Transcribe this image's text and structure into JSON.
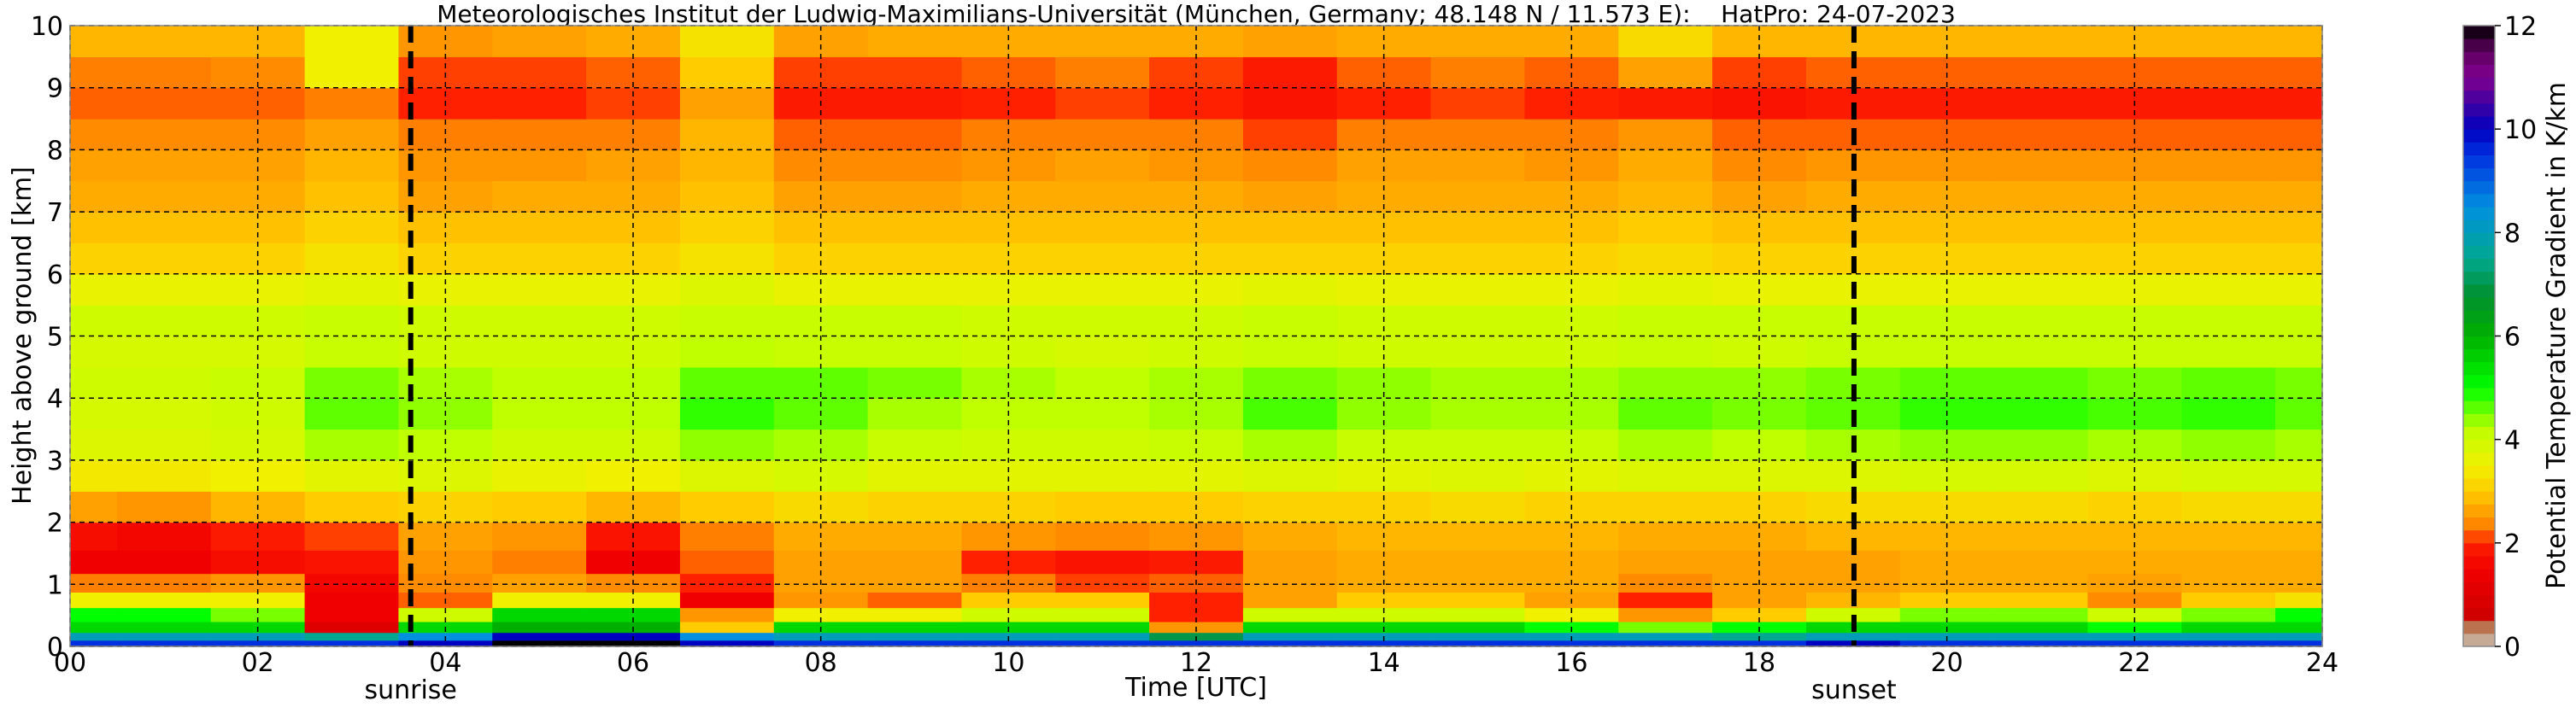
{
  "chart_data": {
    "type": "heatmap",
    "title": "Meteorologisches Institut der Ludwig-Maximilians-Universität (München, Germany; 48.148 N / 11.573 E):    HatPro: 24-07-2023",
    "xlabel": "Time [UTC]",
    "ylabel": "Height above ground [km]",
    "xlim": [
      0,
      24
    ],
    "ylim": [
      0,
      10
    ],
    "x_ticks": [
      "00",
      "02",
      "04",
      "06",
      "08",
      "10",
      "12",
      "14",
      "16",
      "18",
      "20",
      "22",
      "24"
    ],
    "y_ticks": [
      "0",
      "1",
      "2",
      "3",
      "4",
      "5",
      "6",
      "7",
      "8",
      "9",
      "10"
    ],
    "grid": true,
    "colorbar": {
      "label": "Potential Temperature Gradient in K/km",
      "range": [
        0,
        12
      ],
      "ticks": [
        "0",
        "2",
        "4",
        "6",
        "8",
        "10",
        "12"
      ],
      "stops": [
        [
          0,
          "#d2bcbc"
        ],
        [
          0.3,
          "#b89060"
        ],
        [
          0.5,
          "#c04030"
        ],
        [
          0.6,
          "#d00000"
        ],
        [
          1.5,
          "#f00000"
        ],
        [
          2.0,
          "#ff2000"
        ],
        [
          2.3,
          "#ff8000"
        ],
        [
          3.0,
          "#ffcc00"
        ],
        [
          3.5,
          "#f0f000"
        ],
        [
          4.2,
          "#c0ff00"
        ],
        [
          5.0,
          "#00ff00"
        ],
        [
          6.0,
          "#00b000"
        ],
        [
          6.8,
          "#009030"
        ],
        [
          7.5,
          "#00a890"
        ],
        [
          8.5,
          "#0090e0"
        ],
        [
          9.5,
          "#0030e0"
        ],
        [
          10.0,
          "#0000c0"
        ],
        [
          10.5,
          "#4000a0"
        ],
        [
          11.0,
          "#800090"
        ],
        [
          11.5,
          "#600060"
        ],
        [
          12.0,
          "#000000"
        ]
      ]
    },
    "annotations": [
      {
        "label": "sunrise",
        "time": 3.63
      },
      {
        "label": "sunset",
        "time": 19.01
      }
    ],
    "times": [
      0,
      1,
      2,
      3,
      4,
      5,
      6,
      7,
      8,
      9,
      10,
      11,
      12,
      13,
      14,
      15,
      16,
      17,
      18,
      19,
      20,
      21,
      22,
      23,
      24
    ],
    "heights": [
      0.05,
      0.15,
      0.3,
      0.5,
      0.75,
      1.0,
      1.35,
      1.75,
      2.25,
      2.75,
      3.25,
      3.75,
      4.25,
      4.75,
      5.25,
      5.75,
      6.25,
      6.75,
      7.25,
      7.75,
      8.25,
      8.75,
      9.25,
      9.75
    ],
    "values": [
      [
        9.5,
        9.5,
        9.5,
        9.5,
        10,
        12,
        12,
        10,
        9.5,
        9.5,
        9.5,
        9.5,
        9.5,
        9.5,
        9.5,
        9.5,
        9.5,
        9.5,
        9.5,
        10,
        9.5,
        9.5,
        9.5,
        9.5,
        9.5
      ],
      [
        8,
        8,
        8,
        7.5,
        8.5,
        10,
        10,
        8.5,
        8,
        8,
        8,
        8,
        7,
        8,
        8,
        8,
        8,
        8,
        7.5,
        8,
        8,
        8,
        8,
        8,
        8
      ],
      [
        5.5,
        5.5,
        5.5,
        1.0,
        5.5,
        6,
        6,
        3,
        5.5,
        5.5,
        5.5,
        5.5,
        2.5,
        5.5,
        5.5,
        5.5,
        5,
        4.5,
        5,
        5.5,
        5.5,
        5.5,
        5,
        5.5,
        5.5
      ],
      [
        5,
        5,
        4.5,
        1.5,
        4,
        5.5,
        5.5,
        2.5,
        3.5,
        3.5,
        4,
        4,
        2,
        4,
        4,
        4,
        3.5,
        2.5,
        3,
        4,
        4.5,
        4.5,
        4,
        4.5,
        5
      ],
      [
        3.5,
        3.5,
        3.5,
        1.5,
        2.2,
        3.5,
        3.5,
        1.5,
        2.5,
        2.2,
        3,
        3,
        2,
        2.6,
        3,
        3,
        2.6,
        2,
        2.6,
        2.8,
        3,
        3,
        2.4,
        3,
        3.3
      ],
      [
        2.3,
        2.3,
        2.5,
        1.6,
        2.4,
        2.6,
        2.4,
        2,
        2.6,
        2.6,
        2.3,
        2.1,
        2.2,
        2.6,
        2.7,
        2.7,
        2.7,
        2.4,
        2.6,
        2.6,
        2.7,
        2.7,
        2.6,
        2.7,
        2.7
      ],
      [
        1.5,
        1.5,
        1.7,
        1.8,
        2.5,
        2.3,
        1.5,
        2.2,
        2.6,
        2.6,
        2.0,
        1.8,
        1.9,
        2.6,
        2.7,
        2.7,
        2.7,
        2.6,
        2.6,
        2.6,
        2.7,
        2.7,
        2.7,
        2.7,
        2.7
      ],
      [
        1.7,
        1.6,
        1.9,
        2.1,
        2.6,
        2.5,
        1.8,
        2.3,
        2.7,
        2.7,
        2.5,
        2.4,
        2.5,
        2.7,
        2.8,
        2.8,
        2.8,
        2.7,
        2.7,
        2.8,
        2.8,
        2.8,
        2.8,
        2.8,
        2.8
      ],
      [
        2.6,
        2.5,
        2.8,
        3.0,
        3.1,
        3.0,
        2.8,
        3.0,
        3.2,
        3.1,
        3.1,
        3.0,
        3.0,
        3.1,
        3.1,
        3.2,
        3.1,
        3.1,
        3.1,
        3.2,
        3.2,
        3.2,
        3.1,
        3.2,
        3.2
      ],
      [
        3.4,
        3.4,
        3.5,
        3.7,
        3.8,
        3.6,
        3.5,
        3.8,
        3.9,
        3.7,
        3.7,
        3.7,
        3.7,
        3.8,
        3.7,
        3.8,
        3.7,
        3.8,
        3.8,
        3.8,
        3.9,
        3.9,
        3.8,
        3.9,
        3.9
      ],
      [
        3.8,
        3.8,
        3.9,
        4.3,
        4.2,
        4.0,
        4.0,
        4.4,
        4.3,
        4.1,
        4.0,
        4.0,
        4.1,
        4.3,
        4.1,
        4.1,
        4.1,
        4.3,
        4.2,
        4.3,
        4.4,
        4.4,
        4.3,
        4.4,
        4.3
      ],
      [
        3.9,
        3.9,
        4.0,
        4.6,
        4.4,
        4.2,
        4.2,
        4.8,
        4.6,
        4.3,
        4.2,
        4.2,
        4.3,
        4.7,
        4.4,
        4.3,
        4.3,
        4.6,
        4.5,
        4.6,
        4.8,
        4.8,
        4.7,
        4.8,
        4.6
      ],
      [
        4.0,
        4.0,
        4.1,
        4.5,
        4.3,
        4.2,
        4.2,
        4.6,
        4.6,
        4.5,
        4.3,
        4.2,
        4.3,
        4.5,
        4.4,
        4.3,
        4.3,
        4.4,
        4.4,
        4.5,
        4.6,
        4.6,
        4.5,
        4.6,
        4.5
      ],
      [
        3.9,
        3.9,
        3.9,
        4.1,
        4.0,
        4.0,
        4.0,
        4.2,
        4.1,
        4.1,
        4.0,
        3.9,
        4.0,
        4.1,
        4.0,
        4.0,
        4.0,
        4.1,
        4.0,
        4.1,
        4.1,
        4.1,
        4.1,
        4.1,
        4.1
      ],
      [
        4.0,
        4.0,
        4.0,
        4.1,
        4.0,
        4.0,
        4.0,
        4.1,
        4.1,
        4.1,
        4.0,
        4.0,
        4.0,
        4.1,
        4.0,
        4.0,
        4.0,
        4.1,
        4.1,
        4.1,
        4.1,
        4.1,
        4.1,
        4.1,
        4.1
      ],
      [
        3.6,
        3.6,
        3.6,
        3.7,
        3.6,
        3.6,
        3.6,
        3.8,
        3.6,
        3.6,
        3.6,
        3.6,
        3.6,
        3.7,
        3.6,
        3.6,
        3.6,
        3.7,
        3.6,
        3.6,
        3.6,
        3.6,
        3.6,
        3.6,
        3.6
      ],
      [
        3.1,
        3.1,
        3.1,
        3.3,
        3.1,
        3.1,
        3.1,
        3.3,
        3.1,
        3.1,
        3.1,
        3.1,
        3.1,
        3.1,
        3.1,
        3.1,
        3.1,
        3.2,
        3.1,
        3.1,
        3.1,
        3.1,
        3.1,
        3.1,
        3.1
      ],
      [
        2.9,
        2.9,
        2.9,
        3.1,
        2.9,
        2.9,
        2.9,
        3.1,
        2.9,
        2.9,
        2.9,
        2.9,
        2.9,
        2.9,
        2.9,
        2.9,
        2.9,
        3.0,
        2.9,
        2.9,
        2.9,
        2.9,
        2.9,
        2.9,
        2.9
      ],
      [
        2.7,
        2.7,
        2.7,
        2.9,
        2.6,
        2.7,
        2.7,
        2.9,
        2.6,
        2.6,
        2.7,
        2.7,
        2.7,
        2.6,
        2.7,
        2.7,
        2.7,
        2.8,
        2.6,
        2.7,
        2.7,
        2.7,
        2.7,
        2.7,
        2.7
      ],
      [
        2.6,
        2.6,
        2.6,
        2.8,
        2.5,
        2.5,
        2.6,
        2.8,
        2.4,
        2.4,
        2.5,
        2.6,
        2.5,
        2.4,
        2.6,
        2.6,
        2.5,
        2.7,
        2.4,
        2.5,
        2.5,
        2.5,
        2.5,
        2.5,
        2.5
      ],
      [
        2.4,
        2.4,
        2.4,
        2.6,
        2.3,
        2.3,
        2.3,
        2.8,
        2.2,
        2.2,
        2.3,
        2.3,
        2.3,
        2.1,
        2.3,
        2.3,
        2.3,
        2.5,
        2.2,
        2.2,
        2.2,
        2.2,
        2.2,
        2.2,
        2.2
      ],
      [
        2.2,
        2.2,
        2.2,
        2.3,
        2.0,
        2.0,
        2.1,
        2.6,
        1.9,
        1.9,
        2.0,
        2.1,
        2.0,
        1.8,
        2.0,
        2.1,
        2.0,
        1.9,
        1.8,
        1.9,
        1.9,
        1.9,
        1.9,
        1.9,
        1.9
      ],
      [
        2.3,
        2.3,
        2.4,
        3.5,
        2.1,
        2.1,
        2.2,
        3.0,
        2.1,
        2.1,
        2.2,
        2.3,
        2.1,
        1.9,
        2.2,
        2.3,
        2.2,
        2.6,
        2.1,
        2.2,
        2.2,
        2.2,
        2.2,
        2.2,
        2.2
      ],
      [
        2.8,
        2.8,
        2.8,
        3.5,
        2.5,
        2.6,
        2.7,
        3.3,
        2.6,
        2.7,
        2.7,
        2.7,
        2.7,
        2.6,
        2.7,
        2.7,
        2.7,
        3.2,
        2.8,
        2.8,
        2.8,
        2.8,
        2.8,
        2.8,
        2.8
      ]
    ]
  }
}
